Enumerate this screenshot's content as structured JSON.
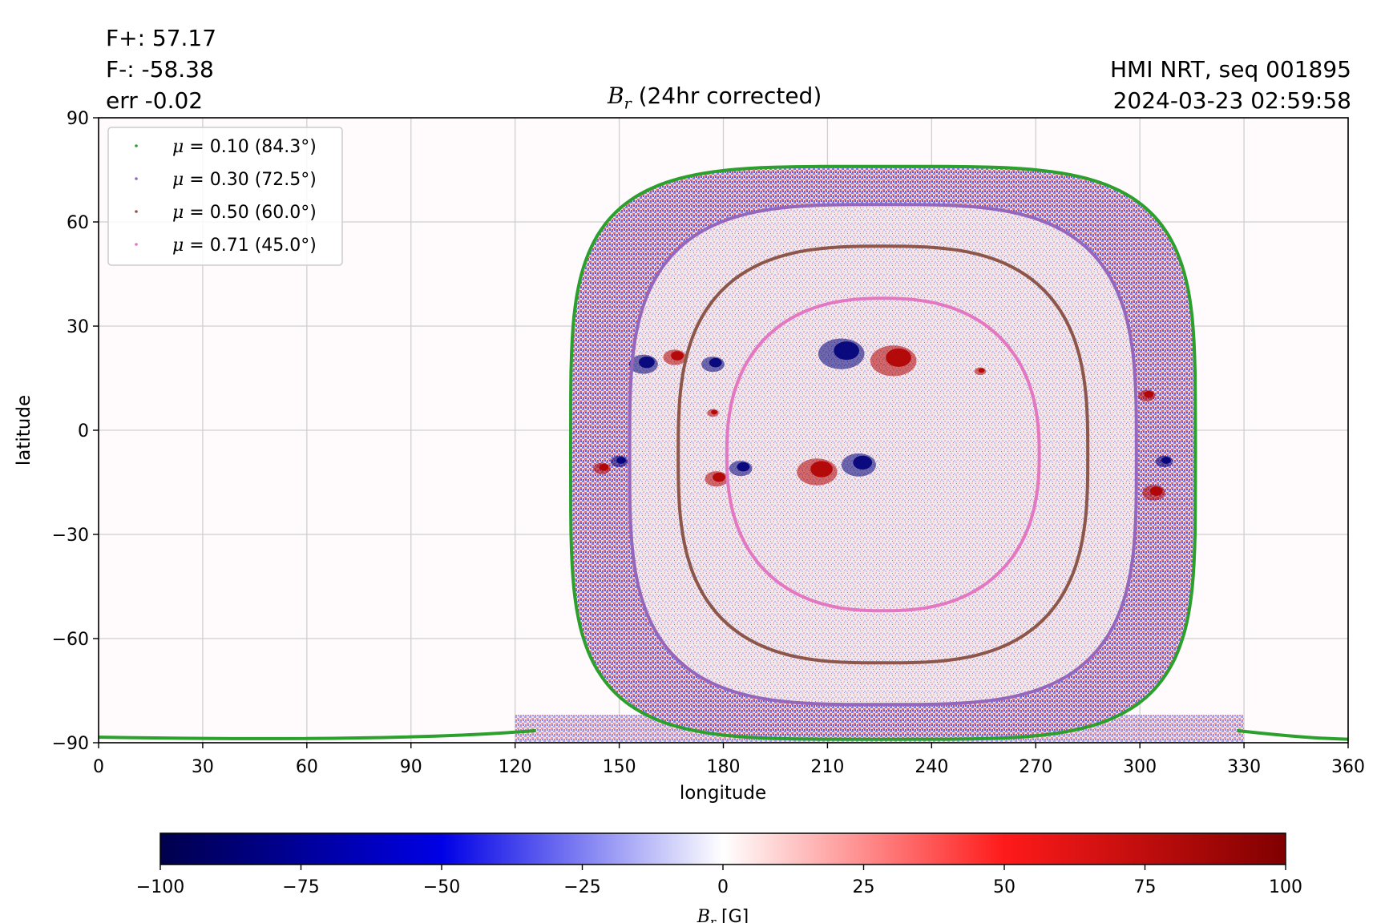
{
  "header": {
    "flux_pos": "F+: 57.17",
    "flux_neg": "F-: -58.38",
    "err": "err -0.02",
    "instrument": "HMI NRT, seq 001895",
    "timestamp": "2024-03-23 02:59:58"
  },
  "chart_data": {
    "type": "heatmap",
    "title": {
      "symbol": "B",
      "subscript": "r",
      "text": " (24hr corrected)"
    },
    "xlabel": "longitude",
    "ylabel": "latitude",
    "xlim": [
      0,
      360
    ],
    "ylim": [
      -90,
      90
    ],
    "xticks": [
      0,
      30,
      60,
      90,
      120,
      150,
      180,
      210,
      240,
      270,
      300,
      330,
      360
    ],
    "yticks": [
      90,
      60,
      30,
      0,
      -30,
      -60,
      -90
    ],
    "ytick_labels": [
      "90",
      "60",
      "30",
      "0",
      "−30",
      "−60",
      "−90"
    ],
    "grid": true,
    "legend_position": "top-left",
    "disk_center_lon": 226,
    "legend": [
      {
        "mu": "0.10",
        "angle": "(84.3°)",
        "color": "#2ca02c",
        "ring_width_deg": 90,
        "ring_top": 76,
        "ring_bottom": -89
      },
      {
        "mu": "0.30",
        "angle": "(72.5°)",
        "color": "#9467bd",
        "ring_width_deg": 73,
        "ring_top": 65,
        "ring_bottom": -79
      },
      {
        "mu": "0.50",
        "angle": "(60.0°)",
        "color": "#8c564b",
        "ring_width_deg": 59,
        "ring_top": 53,
        "ring_bottom": -67
      },
      {
        "mu": "0.71",
        "angle": "(45.0°)",
        "color": "#e377c2",
        "ring_width_deg": 45,
        "ring_top": 38,
        "ring_bottom": -52
      }
    ],
    "active_regions": [
      {
        "lon": 214,
        "lat": 22,
        "sign": -1,
        "size": 8
      },
      {
        "lon": 229,
        "lat": 20,
        "sign": 1,
        "size": 8
      },
      {
        "lon": 207,
        "lat": -12,
        "sign": 1,
        "size": 7
      },
      {
        "lon": 219,
        "lat": -10,
        "sign": -1,
        "size": 6
      },
      {
        "lon": 178,
        "lat": -14,
        "sign": 1,
        "size": 4
      },
      {
        "lon": 185,
        "lat": -11,
        "sign": -1,
        "size": 4
      },
      {
        "lon": 157,
        "lat": 19,
        "sign": -1,
        "size": 5
      },
      {
        "lon": 166,
        "lat": 21,
        "sign": 1,
        "size": 4
      },
      {
        "lon": 177,
        "lat": 19,
        "sign": -1,
        "size": 4
      },
      {
        "lon": 302,
        "lat": 10,
        "sign": 1,
        "size": 3
      },
      {
        "lon": 304,
        "lat": -18,
        "sign": 1,
        "size": 4
      },
      {
        "lon": 307,
        "lat": -9,
        "sign": -1,
        "size": 3
      },
      {
        "lon": 145,
        "lat": -11,
        "sign": 1,
        "size": 3
      },
      {
        "lon": 150,
        "lat": -9,
        "sign": -1,
        "size": 3
      },
      {
        "lon": 254,
        "lat": 17,
        "sign": 1,
        "size": 2
      },
      {
        "lon": 177,
        "lat": 5,
        "sign": 1,
        "size": 2
      }
    ],
    "colorbar": {
      "label_symbol": "B",
      "label_subscript": "r",
      "label_unit": " [G]",
      "min": -100,
      "max": 100,
      "ticks": [
        "−100",
        "−75",
        "−50",
        "−25",
        "0",
        "25",
        "50",
        "75",
        "100"
      ],
      "colormap": "seismic"
    }
  }
}
